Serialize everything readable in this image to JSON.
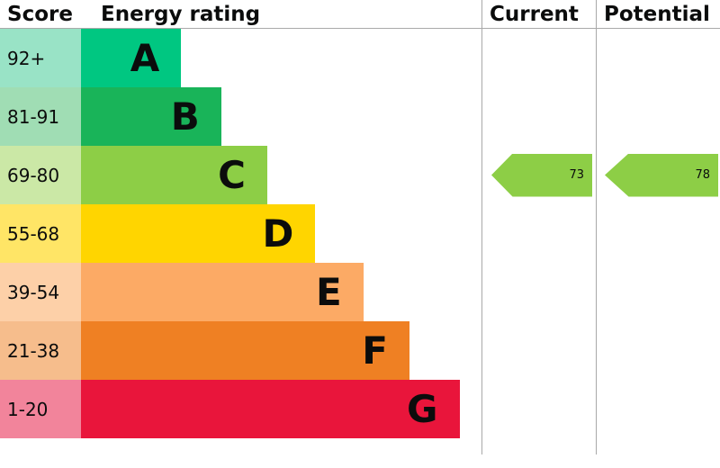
{
  "header": {
    "score": "Score",
    "energy_rating": "Energy rating",
    "current": "Current",
    "potential": "Potential"
  },
  "chart_data": {
    "type": "bar",
    "description": "EPC energy efficiency rating chart (A-G bands)",
    "categories": [
      "A",
      "B",
      "C",
      "D",
      "E",
      "F",
      "G"
    ],
    "bands": [
      {
        "score": "92+",
        "letter": "A",
        "color": "#00c781",
        "tint": "#99e3c6",
        "width_pct": 25
      },
      {
        "score": "81-91",
        "letter": "B",
        "color": "#19b459",
        "tint": "#a0ddb4",
        "width_pct": 35
      },
      {
        "score": "69-80",
        "letter": "C",
        "color": "#8dce46",
        "tint": "#cbe8a6",
        "width_pct": 46.5
      },
      {
        "score": "55-68",
        "letter": "D",
        "color": "#ffd500",
        "tint": "#ffe566",
        "width_pct": 58.5
      },
      {
        "score": "39-54",
        "letter": "E",
        "color": "#fcaa65",
        "tint": "#fdd0a8",
        "width_pct": 70.5
      },
      {
        "score": "21-38",
        "letter": "F",
        "color": "#ef8023",
        "tint": "#f6bd8c",
        "width_pct": 82
      },
      {
        "score": "1-20",
        "letter": "G",
        "color": "#e9153b",
        "tint": "#f2849b",
        "width_pct": 94.5
      }
    ],
    "current": {
      "value": 73,
      "band": "C",
      "band_index": 2,
      "color": "#8dce46"
    },
    "potential": {
      "value": 78,
      "band": "C",
      "band_index": 2,
      "color": "#8dce46"
    }
  }
}
